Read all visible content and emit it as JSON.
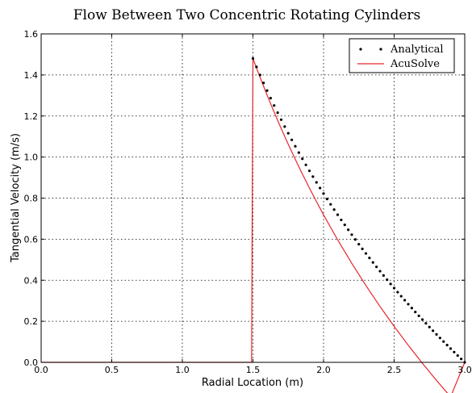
{
  "chart_data": {
    "type": "line",
    "title": "Flow Between Two Concentric Rotating Cylinders",
    "xlabel": "Radial Location (m)",
    "ylabel": "Tangential Velocity (m/s)",
    "xlim": [
      0.0,
      3.0
    ],
    "ylim": [
      0.0,
      1.6
    ],
    "xticks": [
      "0.0",
      "0.5",
      "1.0",
      "1.5",
      "2.0",
      "2.5",
      "3.0"
    ],
    "yticks": [
      "0.0",
      "0.2",
      "0.4",
      "0.6",
      "0.8",
      "1.0",
      "1.2",
      "1.4",
      "1.6"
    ],
    "grid": true,
    "legend_position": "top-right",
    "series": [
      {
        "name": "Analytical",
        "style": "dots",
        "color": "#000000",
        "r_inner": 1.5,
        "r_outer": 3.0,
        "omega_inner": 0.98667,
        "x_step": 0.025
      },
      {
        "name": "AcuSolve",
        "style": "line",
        "color": "#e8262a",
        "x": [
          0.0,
          1.49,
          1.5,
          1.525,
          1.55,
          1.6,
          1.65,
          1.7,
          1.75,
          1.8,
          1.85,
          1.9,
          1.95,
          2.0,
          2.1,
          2.2,
          2.3,
          2.4,
          2.5,
          2.6,
          2.7,
          2.8,
          2.9,
          3.0
        ],
        "y": [
          0.0,
          0.0,
          1.48,
          1.4342,
          1.3891,
          1.3021,
          1.2189,
          1.1391,
          1.0624,
          0.9887,
          0.9176,
          0.8491,
          0.7828,
          0.7187,
          0.5966,
          0.4821,
          0.3741,
          0.272,
          0.1753,
          0.0833,
          -0.0043,
          -0.088,
          -0.1681,
          0.0
        ]
      }
    ]
  }
}
